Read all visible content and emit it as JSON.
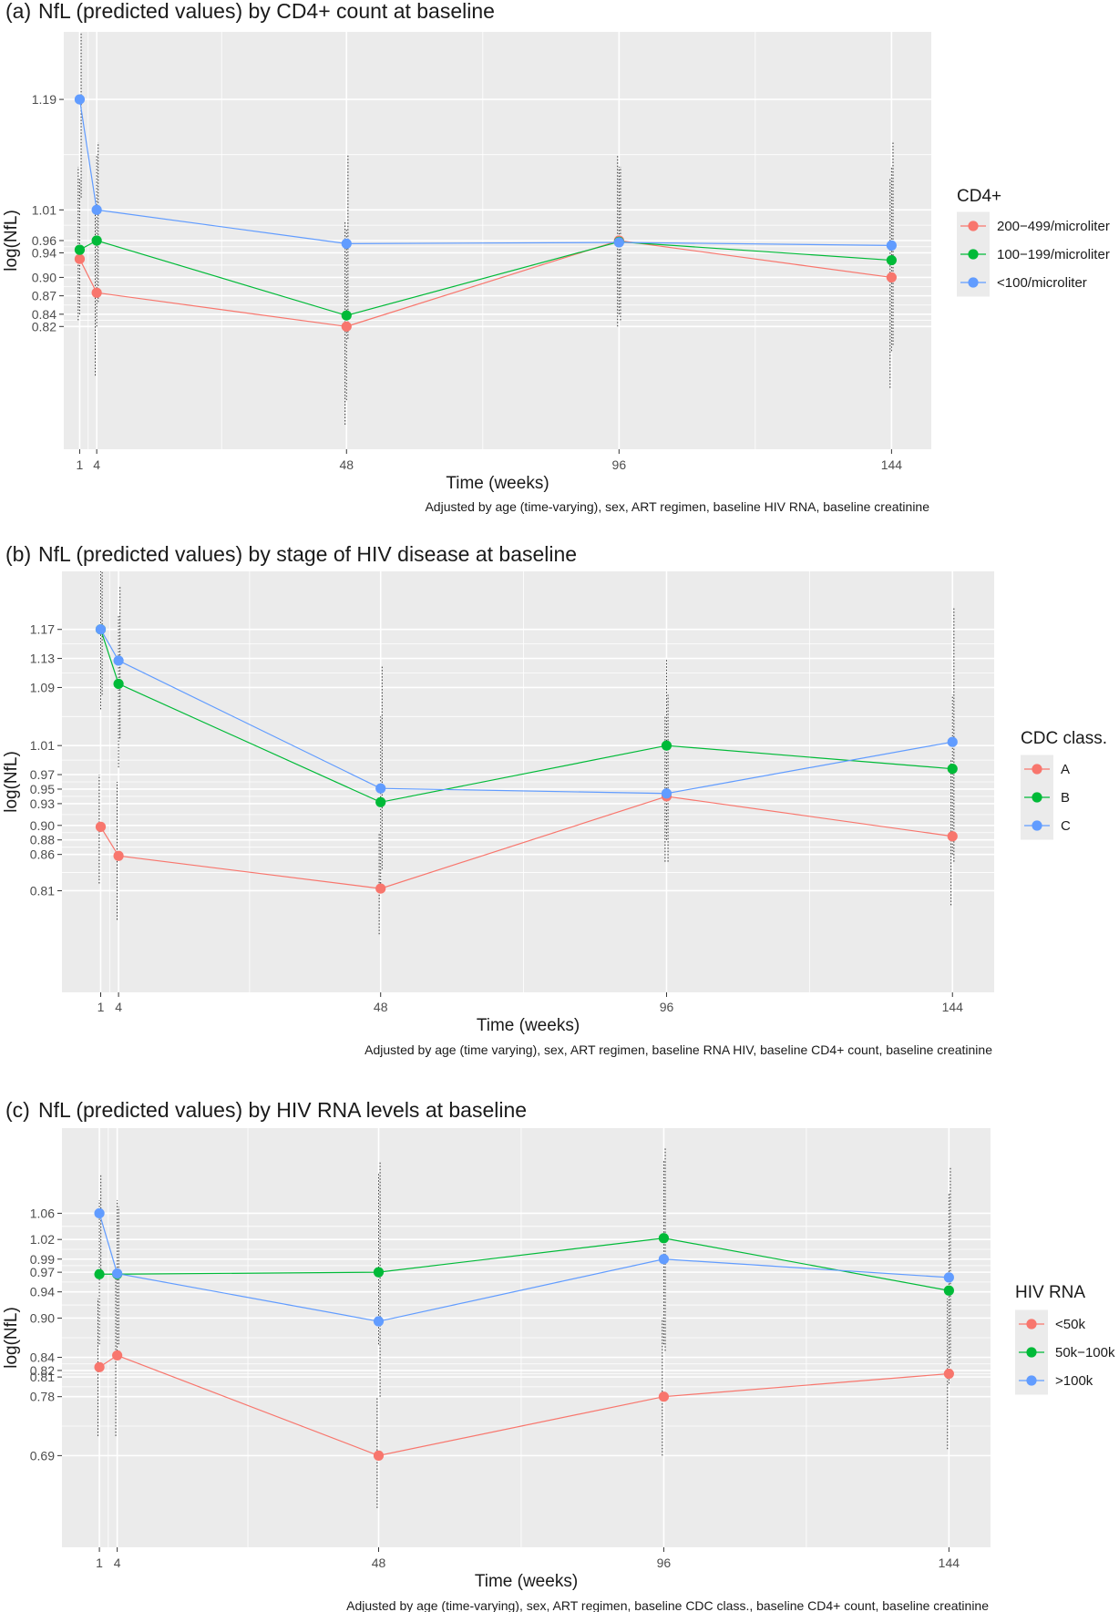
{
  "colors": {
    "panel": "#ebebeb",
    "grid": "#ffffff",
    "red": "#f8766d",
    "green": "#00ba38",
    "blue": "#619cff",
    "errorbar": "#333333"
  },
  "chart_data": [
    {
      "type": "line",
      "panel_label": "(a)",
      "title": "NfL (predicted values) by CD4+ count at baseline",
      "xlabel": "Time (weeks)",
      "ylabel": "log(NfL)",
      "caption": "Adjusted by age (time-varying), sex, ART regimen, baseline HIV RNA, baseline creatinine",
      "x": [
        1,
        4,
        48,
        96,
        144
      ],
      "xticks": [
        "1",
        "4",
        "48",
        "96",
        "144"
      ],
      "xlim": [
        -1.8,
        151
      ],
      "ylim": [
        0.62,
        1.3
      ],
      "yticks": [
        0.82,
        0.84,
        0.87,
        0.9,
        0.94,
        0.96,
        1.01,
        1.19
      ],
      "ytick_labels": [
        "0.82",
        "0.84",
        "0.87",
        "0.90",
        "0.94",
        "0.96",
        "1.01",
        "1.19"
      ],
      "legend_title": "CD4+",
      "legend_position": "right",
      "series": [
        {
          "name": "200−499/microliter",
          "color": "#f8766d",
          "values": [
            0.93,
            0.875,
            0.82,
            0.96,
            0.9
          ],
          "lower": [
            0.83,
            0.74,
            0.66,
            0.82,
            0.72
          ],
          "upper": [
            1.08,
            1.02,
            0.99,
            1.1,
            1.06
          ]
        },
        {
          "name": "100−199/microliter",
          "color": "#00ba38",
          "values": [
            0.945,
            0.96,
            0.838,
            0.958,
            0.928
          ],
          "lower": [
            0.84,
            0.82,
            0.7,
            0.84,
            0.78
          ],
          "upper": [
            1.06,
            1.1,
            0.98,
            1.08,
            1.08
          ]
        },
        {
          "name": "<100/microliter",
          "color": "#619cff",
          "values": [
            1.19,
            1.01,
            0.955,
            0.957,
            0.952
          ],
          "lower": [
            1.03,
            0.86,
            0.8,
            0.83,
            0.79
          ],
          "upper": [
            1.3,
            1.12,
            1.1,
            1.08,
            1.12
          ]
        }
      ]
    },
    {
      "type": "line",
      "panel_label": "(b)",
      "title": "NfL (predicted values) by stage of HIV disease at baseline",
      "xlabel": "Time (weeks)",
      "ylabel": "log(NfL)",
      "caption": "Adjusted by age (time varying), sex, ART regimen, baseline RNA HIV, baseline CD4+ count, baseline creatinine",
      "x": [
        1,
        4,
        48,
        96,
        144
      ],
      "xticks": [
        "1",
        "4",
        "48",
        "96",
        "144"
      ],
      "xlim": [
        -5.5,
        151
      ],
      "ylim": [
        0.67,
        1.25
      ],
      "yticks": [
        0.81,
        0.86,
        0.88,
        0.9,
        0.93,
        0.95,
        0.97,
        1.01,
        1.09,
        1.13,
        1.17
      ],
      "ytick_labels": [
        "0.81",
        "0.86",
        "0.88",
        "0.90",
        "0.93",
        "0.95",
        "0.97",
        "1.01",
        "1.09",
        "1.13",
        "1.17"
      ],
      "legend_title": "CDC class.",
      "legend_position": "right",
      "series": [
        {
          "name": "A",
          "color": "#f8766d",
          "values": [
            0.898,
            0.858,
            0.813,
            0.94,
            0.885
          ],
          "lower": [
            0.82,
            0.77,
            0.75,
            0.85,
            0.79
          ],
          "upper": [
            0.97,
            0.96,
            0.89,
            1.05,
            0.99
          ]
        },
        {
          "name": "B",
          "color": "#00ba38",
          "values": [
            1.17,
            1.095,
            0.932,
            1.01,
            0.978
          ],
          "lower": [
            1.06,
            0.98,
            0.82,
            0.88,
            0.86
          ],
          "upper": [
            1.25,
            1.19,
            1.05,
            1.13,
            1.08
          ]
        },
        {
          "name": "C",
          "color": "#619cff",
          "values": [
            1.17,
            1.127,
            0.951,
            0.944,
            1.015
          ],
          "lower": [
            1.08,
            1.02,
            0.84,
            0.85,
            0.85
          ],
          "upper": [
            1.25,
            1.23,
            1.12,
            1.08,
            1.2
          ]
        }
      ]
    },
    {
      "type": "line",
      "panel_label": "(c)",
      "title": "NfL (predicted values) by HIV RNA levels at baseline",
      "xlabel": "Time (weeks)",
      "ylabel": "log(NfL)",
      "caption": "Adjusted by age (time-varying), sex, ART regimen, baseline CDC class., baseline CD4+ count, baseline creatinine",
      "x": [
        1,
        4,
        48,
        96,
        144
      ],
      "xticks": [
        "1",
        "4",
        "48",
        "96",
        "144"
      ],
      "xlim": [
        -5.3,
        151
      ],
      "ylim": [
        0.55,
        1.19
      ],
      "yticks": [
        0.69,
        0.78,
        0.81,
        0.82,
        0.84,
        0.9,
        0.94,
        0.97,
        0.99,
        1.02,
        1.06
      ],
      "ytick_labels": [
        "0.69",
        "0.78",
        "0.81",
        "0.82",
        "0.84",
        "0.90",
        "0.94",
        "0.97",
        "0.99",
        "1.02",
        "1.06"
      ],
      "legend_title": "HIV RNA",
      "legend_position": "right",
      "series": [
        {
          "name": "<50k",
          "color": "#f8766d",
          "values": [
            0.825,
            0.843,
            0.69,
            0.78,
            0.815
          ],
          "lower": [
            0.72,
            0.72,
            0.61,
            0.69,
            0.7
          ],
          "upper": [
            0.93,
            0.96,
            0.78,
            0.9,
            0.93
          ]
        },
        {
          "name": "50k−100k",
          "color": "#00ba38",
          "values": [
            0.967,
            0.967,
            0.97,
            1.022,
            0.942
          ],
          "lower": [
            0.86,
            0.85,
            0.86,
            0.86,
            0.8
          ],
          "upper": [
            1.08,
            1.08,
            1.12,
            1.14,
            1.09
          ]
        },
        {
          "name": ">100k",
          "color": "#619cff",
          "values": [
            1.06,
            0.968,
            0.895,
            0.99,
            0.962
          ],
          "lower": [
            0.96,
            0.86,
            0.78,
            0.85,
            0.83
          ],
          "upper": [
            1.12,
            1.07,
            1.14,
            1.16,
            1.13
          ]
        }
      ]
    }
  ]
}
